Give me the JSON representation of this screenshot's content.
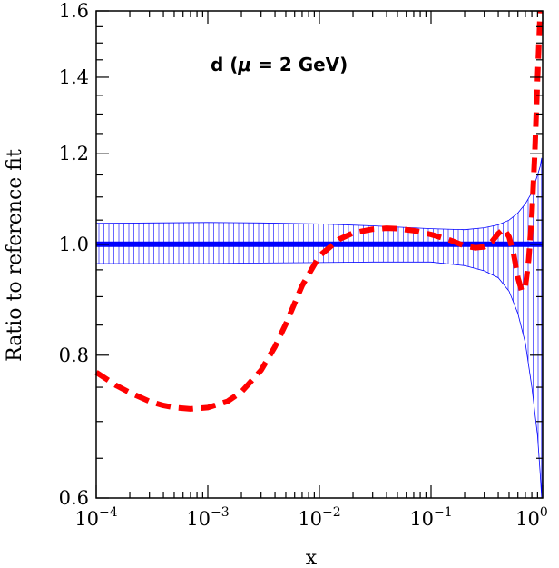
{
  "chart_data": {
    "type": "line",
    "xlabel": "x",
    "ylabel": "Ratio to reference fit",
    "annotation": {
      "prefix": "d (",
      "symbol": "μ",
      "suffix": " = 2 GeV)"
    },
    "x_scale": "log",
    "y_scale": "log",
    "xlim": [
      0.0001,
      1
    ],
    "ylim": [
      0.6,
      1.6
    ],
    "x_ticks": [
      {
        "value": 0.0001,
        "base": "10",
        "exp": "−4"
      },
      {
        "value": 0.001,
        "base": "10",
        "exp": "−3"
      },
      {
        "value": 0.01,
        "base": "10",
        "exp": "−2"
      },
      {
        "value": 0.1,
        "base": "10",
        "exp": "−1"
      },
      {
        "value": 1,
        "base": "10",
        "exp": "0"
      }
    ],
    "y_ticks": [
      {
        "value": 0.6,
        "label": "0.6"
      },
      {
        "value": 0.8,
        "label": "0.8"
      },
      {
        "value": 1.0,
        "label": "1.0"
      },
      {
        "value": 1.2,
        "label": "1.2"
      },
      {
        "value": 1.4,
        "label": "1.4"
      },
      {
        "value": 1.6,
        "label": "1.6"
      }
    ],
    "grid": false,
    "colors": {
      "band": "#0000ff",
      "reference": "#0000ff",
      "ratio": "#ff0000",
      "axis": "#000000"
    },
    "series": [
      {
        "style": "solid-thick",
        "x": [
          0.0001,
          1
        ],
        "y": [
          1.0,
          1.0
        ]
      },
      {
        "style": "dashed-thick",
        "x": [
          0.0001,
          0.00015,
          0.0002,
          0.0003,
          0.0004,
          0.0005,
          0.0007,
          0.001,
          0.0015,
          0.002,
          0.003,
          0.004,
          0.005,
          0.007,
          0.01,
          0.015,
          0.02,
          0.03,
          0.04,
          0.05,
          0.07,
          0.1,
          0.15,
          0.2,
          0.25,
          0.3,
          0.35,
          0.4,
          0.45,
          0.5,
          0.55,
          0.6,
          0.65,
          0.7,
          0.75,
          0.8,
          0.85,
          0.9,
          0.95
        ],
        "y": [
          0.773,
          0.753,
          0.742,
          0.729,
          0.723,
          0.72,
          0.718,
          0.72,
          0.729,
          0.743,
          0.776,
          0.814,
          0.852,
          0.92,
          0.977,
          1.01,
          1.023,
          1.031,
          1.033,
          1.032,
          1.028,
          1.02,
          1.008,
          0.997,
          0.993,
          0.995,
          1.005,
          1.022,
          1.032,
          1.015,
          0.98,
          0.935,
          0.91,
          0.918,
          0.97,
          1.06,
          1.2,
          1.4,
          1.6
        ]
      }
    ],
    "band": {
      "x": [
        0.0001,
        0.0003,
        0.001,
        0.003,
        0.01,
        0.03,
        0.1,
        0.2,
        0.3,
        0.4,
        0.5,
        0.6,
        0.7,
        0.8,
        0.9,
        0.95,
        0.98
      ],
      "lower": [
        0.962,
        0.962,
        0.962,
        0.963,
        0.964,
        0.965,
        0.965,
        0.958,
        0.948,
        0.935,
        0.91,
        0.87,
        0.82,
        0.75,
        0.68,
        0.63,
        0.6
      ],
      "upper": [
        1.043,
        1.044,
        1.045,
        1.044,
        1.042,
        1.038,
        1.032,
        1.03,
        1.034,
        1.04,
        1.05,
        1.065,
        1.085,
        1.11,
        1.15,
        1.17,
        1.19
      ]
    }
  }
}
